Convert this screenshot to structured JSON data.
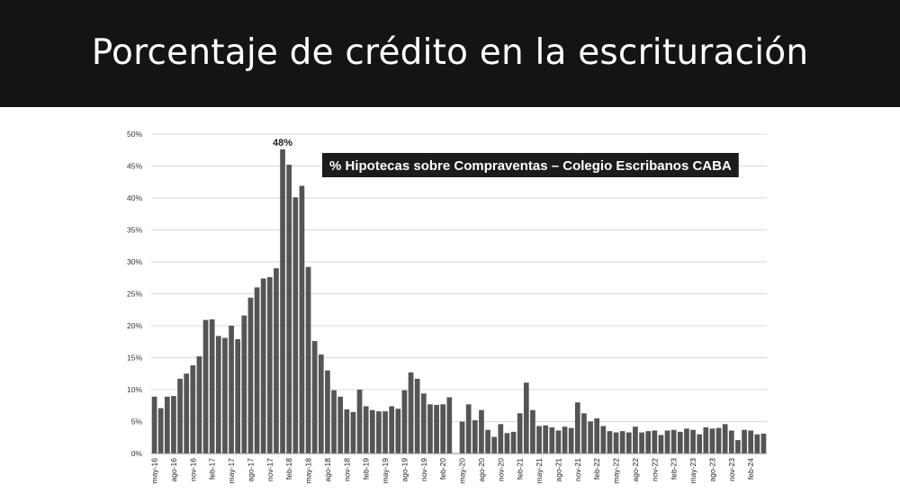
{
  "slide": {
    "title": "Porcentaje de crédito en la escrituración"
  },
  "chart_data": {
    "type": "bar",
    "title": "% Hipotecas sobre Compraventas – Colegio Escribanos CABA",
    "xlabel": "",
    "ylabel": "",
    "ylim": [
      0,
      50
    ],
    "y_ticks": [
      "0%",
      "5%",
      "10%",
      "15%",
      "20%",
      "25%",
      "30%",
      "35%",
      "40%",
      "45%",
      "50%"
    ],
    "grid": true,
    "bar_color": "#555555",
    "peak_annotation": "48%",
    "categories": [
      "may-16",
      "jun-16",
      "jul-16",
      "ago-16",
      "sep-16",
      "oct-16",
      "nov-16",
      "dic-16",
      "ene-17",
      "feb-17",
      "mar-17",
      "abr-17",
      "may-17",
      "jun-17",
      "jul-17",
      "ago-17",
      "sep-17",
      "oct-17",
      "nov-17",
      "dic-17",
      "ene-18",
      "feb-18",
      "mar-18",
      "abr-18",
      "may-18",
      "jun-18",
      "jul-18",
      "ago-18",
      "sep-18",
      "oct-18",
      "nov-18",
      "dic-18",
      "ene-19",
      "feb-19",
      "mar-19",
      "abr-19",
      "may-19",
      "jun-19",
      "jul-19",
      "ago-19",
      "sep-19",
      "oct-19",
      "nov-19",
      "dic-19",
      "ene-20",
      "feb-20",
      "mar-20",
      "abr-20",
      "may-20",
      "jun-20",
      "jul-20",
      "ago-20",
      "sep-20",
      "oct-20",
      "nov-20",
      "dic-20",
      "ene-21",
      "feb-21",
      "mar-21",
      "abr-21",
      "may-21",
      "jun-21",
      "jul-21",
      "ago-21",
      "sep-21",
      "oct-21",
      "nov-21",
      "dic-21",
      "ene-22",
      "feb-22",
      "mar-22",
      "abr-22",
      "may-22",
      "jun-22",
      "jul-22",
      "ago-22",
      "sep-22",
      "oct-22",
      "nov-22",
      "dic-22",
      "ene-23",
      "feb-23",
      "mar-23",
      "abr-23",
      "may-23",
      "jun-23",
      "jul-23",
      "ago-23",
      "sep-23",
      "oct-23",
      "nov-23",
      "dic-23",
      "ene-24",
      "feb-24",
      "mar-24",
      "abr-24"
    ],
    "shown_x_labels": [
      "may-16",
      "ago-16",
      "nov-16",
      "feb-17",
      "may-17",
      "ago-17",
      "nov-17",
      "feb-18",
      "may-18",
      "ago-18",
      "nov-18",
      "feb-19",
      "may-19",
      "ago-19",
      "nov-19",
      "feb-20",
      "may-20",
      "ago-20",
      "nov-20",
      "feb-21",
      "may-21",
      "ago-21",
      "nov-21",
      "feb-22",
      "may-22",
      "ago-22",
      "nov-22",
      "feb-23",
      "may-23",
      "ago-23",
      "nov-23",
      "feb-24"
    ],
    "values": [
      8.9,
      7.1,
      8.9,
      9.0,
      11.7,
      12.5,
      13.8,
      15.2,
      20.9,
      21.0,
      18.4,
      18.1,
      20.0,
      17.9,
      21.6,
      24.4,
      26.0,
      27.4,
      27.6,
      29.0,
      47.6,
      45.2,
      40.1,
      41.9,
      29.2,
      17.6,
      15.5,
      13.0,
      9.9,
      8.9,
      6.9,
      6.5,
      10.0,
      7.4,
      6.8,
      6.6,
      6.6,
      7.4,
      7.0,
      9.9,
      12.7,
      11.7,
      9.4,
      7.7,
      7.6,
      7.7,
      8.8,
      null,
      5.0,
      7.7,
      5.2,
      6.8,
      3.7,
      2.6,
      4.6,
      3.2,
      3.4,
      6.3,
      11.1,
      6.8,
      4.3,
      4.4,
      4.1,
      3.6,
      4.2,
      4.0,
      8.0,
      6.3,
      5.0,
      5.5,
      4.3,
      3.5,
      3.3,
      3.5,
      3.3,
      4.2,
      3.3,
      3.5,
      3.6,
      2.9,
      3.6,
      3.7,
      3.4,
      3.9,
      3.7,
      3.0,
      4.1,
      3.9,
      4.0,
      4.6,
      3.6,
      2.1,
      3.7,
      3.6,
      3.0,
      3.1
    ]
  }
}
